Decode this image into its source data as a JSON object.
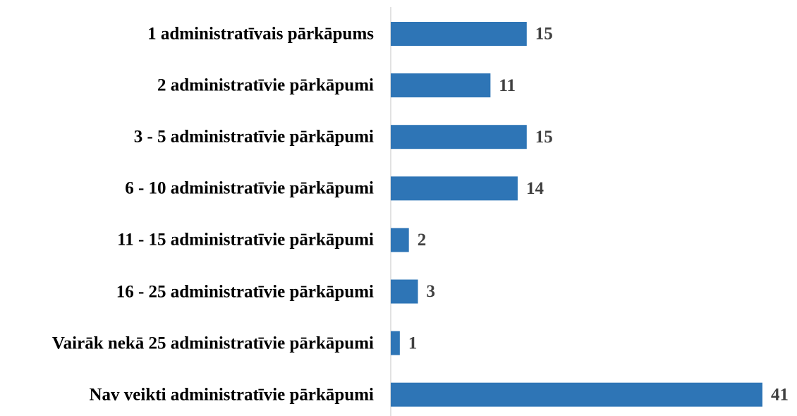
{
  "chart_data": {
    "type": "bar",
    "orientation": "horizontal",
    "categories": [
      "1 administratīvais pārkāpums",
      "2 administratīvie pārkāpumi",
      "3 - 5 administratīvie pārkāpumi",
      "6 - 10 administratīvie pārkāpumi",
      "11 - 15 administratīvie pārkāpumi",
      "16 - 25 administratīvie pārkāpumi",
      "Vairāk nekā 25 administratīvie pārkāpumi",
      "Nav veikti administratīvie pārkāpumi"
    ],
    "values": [
      15,
      11,
      15,
      14,
      2,
      3,
      1,
      41
    ],
    "color": "#2e75b6"
  }
}
